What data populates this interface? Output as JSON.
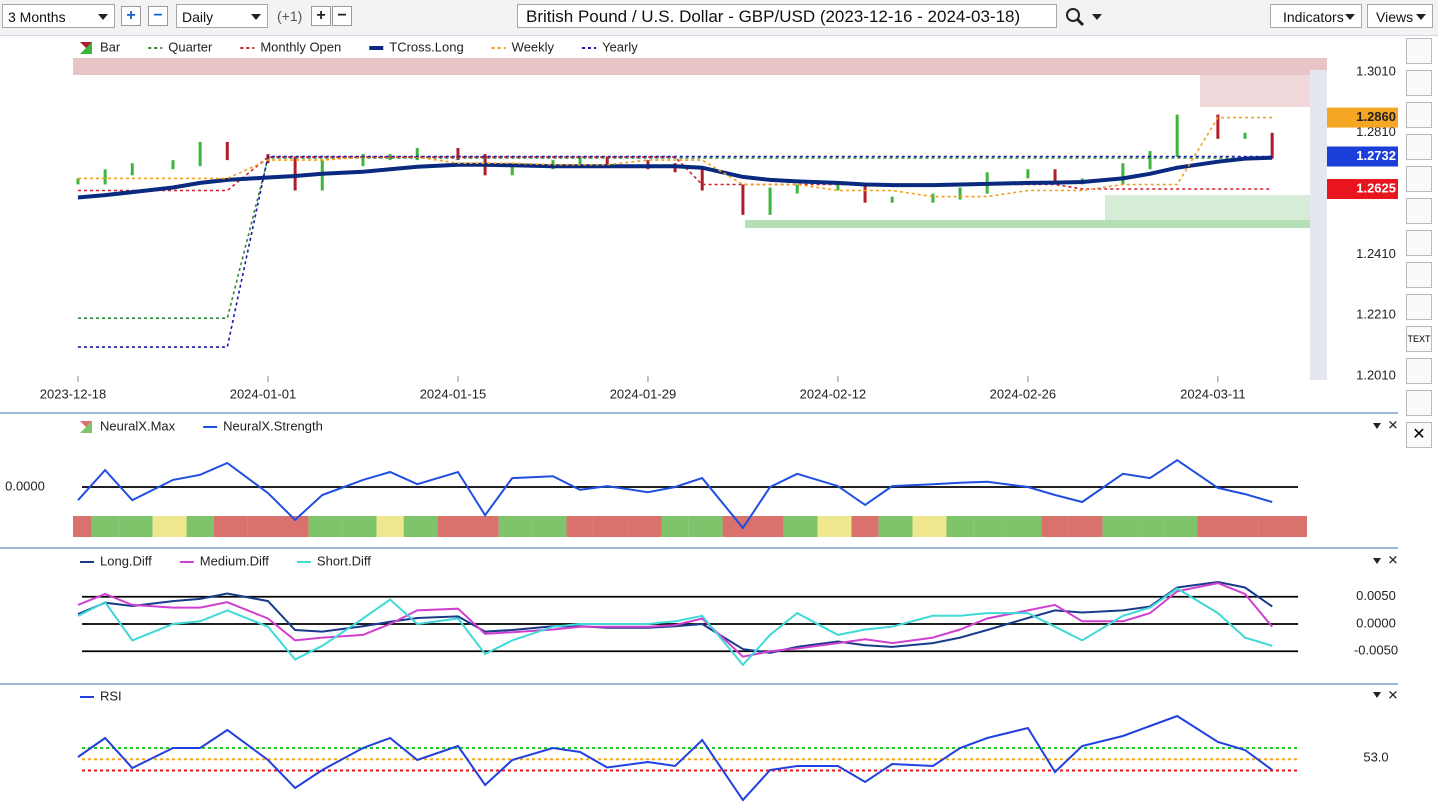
{
  "toolbar": {
    "period": "3 Months",
    "interval": "Daily",
    "offset": "(+1)",
    "title": "British Pound / U.S. Dollar - GBP/USD (2023-12-16 - 2024-03-18)",
    "indicators": "Indicators",
    "views": "Views",
    "text_tool": "TEXT"
  },
  "chart_data": [
    {
      "type": "line",
      "ylim": [
        1.1931,
        1.3056
      ],
      "yticks": [
        {
          "value": 1.301,
          "label": "1.3010"
        },
        {
          "value": 1.281,
          "label": "1.2810"
        },
        {
          "value": 1.241,
          "label": "1.2410"
        },
        {
          "value": 1.221,
          "label": "1.2210"
        },
        {
          "value": 1.201,
          "label": "1.2010"
        }
      ],
      "xticks": [
        "2023-12-18",
        "2024-01-01",
        "2024-01-15",
        "2024-01-29",
        "2024-02-12",
        "2024-02-26",
        "2024-03-11"
      ],
      "level_labels": [
        {
          "value": 1.286,
          "label": "1.2860",
          "color": "#f5a623"
        },
        {
          "value": 1.2732,
          "label": "1.2732",
          "color": "#1a3fd8"
        },
        {
          "value": 1.2625,
          "label": "1.2625",
          "color": "#e8141e"
        }
      ],
      "x": [
        "2023-12-18",
        "2023-12-20",
        "2023-12-22",
        "2023-12-25",
        "2023-12-27",
        "2023-12-29",
        "2024-01-01",
        "2024-01-03",
        "2024-01-05",
        "2024-01-08",
        "2024-01-10",
        "2024-01-12",
        "2024-01-15",
        "2024-01-17",
        "2024-01-19",
        "2024-01-22",
        "2024-01-24",
        "2024-01-26",
        "2024-01-29",
        "2024-01-31",
        "2024-02-02",
        "2024-02-05",
        "2024-02-07",
        "2024-02-09",
        "2024-02-12",
        "2024-02-14",
        "2024-02-16",
        "2024-02-19",
        "2024-02-21",
        "2024-02-23",
        "2024-02-26",
        "2024-02-28",
        "2024-03-01",
        "2024-03-04",
        "2024-03-06",
        "2024-03-08",
        "2024-03-11",
        "2024-03-13",
        "2024-03-15"
      ],
      "series": [
        {
          "name": "Bar",
          "style": "bars",
          "color": "#3cb53c",
          "down_color": "#b01c2a",
          "values": [
            1.265,
            1.268,
            1.27,
            1.271,
            1.277,
            1.273,
            1.272,
            1.263,
            1.271,
            1.273,
            1.273,
            1.275,
            1.273,
            1.268,
            1.27,
            1.271,
            1.272,
            1.271,
            1.27,
            1.269,
            1.263,
            1.255,
            1.262,
            1.263,
            1.263,
            1.259,
            1.259,
            1.26,
            1.262,
            1.267,
            1.268,
            1.265,
            1.265,
            1.27,
            1.274,
            1.286,
            1.28,
            1.28,
            1.2735
          ]
        },
        {
          "name": "Quarter",
          "style": "dashed",
          "color": "#2e8b3a",
          "values": [
            1.22,
            1.22,
            1.22,
            1.22,
            1.22,
            1.22,
            1.2727,
            1.2727,
            1.2727,
            1.2727,
            1.2727,
            1.2727,
            1.2727,
            1.2727,
            1.2727,
            1.2727,
            1.2727,
            1.2727,
            1.2727,
            1.2727,
            1.2727,
            1.2727,
            1.2727,
            1.2727,
            1.2727,
            1.2727,
            1.2727,
            1.2727,
            1.2727,
            1.2727,
            1.2727,
            1.2727,
            1.2727,
            1.2727,
            1.2727,
            1.2727,
            1.2727,
            1.2727,
            1.2727
          ]
        },
        {
          "name": "Monthly Open",
          "style": "dashed",
          "color": "#d0202a",
          "values": [
            1.262,
            1.262,
            1.262,
            1.262,
            1.262,
            1.262,
            1.273,
            1.273,
            1.273,
            1.273,
            1.273,
            1.273,
            1.273,
            1.273,
            1.273,
            1.273,
            1.273,
            1.273,
            1.273,
            1.273,
            1.264,
            1.264,
            1.264,
            1.264,
            1.264,
            1.264,
            1.264,
            1.264,
            1.264,
            1.264,
            1.264,
            1.264,
            1.2625,
            1.2625,
            1.2625,
            1.2625,
            1.2625,
            1.2625,
            1.2625
          ]
        },
        {
          "name": "TCross.Long",
          "style": "thick",
          "color": "#0a2a80",
          "values": [
            1.2597,
            1.2605,
            1.2615,
            1.263,
            1.2645,
            1.2655,
            1.2663,
            1.2668,
            1.2675,
            1.2682,
            1.269,
            1.2698,
            1.2705,
            1.2705,
            1.2703,
            1.27,
            1.27,
            1.27,
            1.27,
            1.27,
            1.2695,
            1.2665,
            1.2655,
            1.265,
            1.2645,
            1.264,
            1.2638,
            1.2638,
            1.264,
            1.2642,
            1.2645,
            1.2646,
            1.2648,
            1.266,
            1.2675,
            1.2695,
            1.2715,
            1.2725,
            1.2728
          ]
        },
        {
          "name": "Weekly",
          "style": "dashed",
          "color": "#f0a020",
          "values": [
            1.266,
            1.266,
            1.266,
            1.266,
            1.266,
            1.266,
            1.272,
            1.272,
            1.272,
            1.273,
            1.273,
            1.273,
            1.271,
            1.271,
            1.271,
            1.2705,
            1.2705,
            1.2705,
            1.272,
            1.272,
            1.272,
            1.264,
            1.264,
            1.264,
            1.262,
            1.262,
            1.262,
            1.26,
            1.26,
            1.26,
            1.262,
            1.262,
            1.262,
            1.264,
            1.264,
            1.264,
            1.286,
            1.286,
            1.286
          ]
        },
        {
          "name": "Yearly",
          "style": "dashed",
          "color": "#1a1aa8",
          "values": [
            1.2105,
            1.2105,
            1.2105,
            1.2105,
            1.2105,
            1.2105,
            1.2732,
            1.2732,
            1.2732,
            1.2732,
            1.2732,
            1.2732,
            1.2732,
            1.2732,
            1.2732,
            1.2732,
            1.2732,
            1.2732,
            1.2732,
            1.2732,
            1.2732,
            1.2732,
            1.2732,
            1.2732,
            1.2732,
            1.2732,
            1.2732,
            1.2732,
            1.2732,
            1.2732,
            1.2732,
            1.2732,
            1.2732,
            1.2732,
            1.2732,
            1.2732,
            1.2732,
            1.2732,
            1.2732
          ]
        }
      ]
    },
    {
      "type": "line",
      "ylim": [
        -1,
        1
      ],
      "yaxis_side": "left",
      "grid": true,
      "yticks": [
        {
          "value": 0,
          "label": "0.0000"
        }
      ],
      "palette": {
        "red": "#d9716c",
        "green": "#7dc46b",
        "yellow": "#efe88e"
      },
      "series": [
        {
          "name": "NeuralX.Max",
          "style": "states",
          "states": [
            "red",
            "green",
            "green",
            "yellow",
            "green",
            "red",
            "red",
            "red",
            "green",
            "green",
            "yellow",
            "green",
            "red",
            "red",
            "green",
            "green",
            "red",
            "red",
            "red",
            "green",
            "green",
            "red",
            "red",
            "green",
            "yellow",
            "red",
            "green",
            "yellow",
            "green",
            "green",
            "green",
            "red",
            "red",
            "green",
            "green",
            "green",
            "red",
            "red",
            "red"
          ]
        },
        {
          "name": "NeuralX.Strength",
          "style": "line",
          "color": "#1f4fe0",
          "values": [
            -0.28,
            0.36,
            -0.28,
            0.15,
            0.26,
            0.51,
            -0.13,
            -0.7,
            -0.17,
            0.15,
            0.32,
            0.06,
            0.32,
            -0.6,
            0.19,
            0.23,
            -0.06,
            0.02,
            -0.11,
            0,
            0.19,
            -0.87,
            0,
            0.28,
            0.02,
            -0.38,
            0.02,
            0.06,
            0.09,
            0.11,
            0,
            -0.17,
            -0.32,
            0.28,
            0.19,
            0.57,
            -0.02,
            -0.15,
            -0.32
          ]
        }
      ]
    },
    {
      "type": "line",
      "ylim": [
        -0.0088,
        0.0099
      ],
      "grid": true,
      "yticks": [
        {
          "value": 0.005,
          "label": "0.0050"
        },
        {
          "value": 0,
          "label": "0.0000"
        },
        {
          "value": -0.005,
          "label": "-0.0050"
        }
      ],
      "series": [
        {
          "name": "Long.Diff",
          "style": "line",
          "color": "#1a3a8a",
          "values": [
            0.0018,
            0.0039,
            0.0033,
            0.0042,
            0.0046,
            0.0056,
            0.0042,
            -0.0011,
            -0.0014,
            -0.0004,
            0.0004,
            0.0011,
            0.0014,
            -0.0014,
            -0.0011,
            -0.0004,
            -0.0004,
            -0.0007,
            -0.0007,
            -0.0004,
            0,
            -0.0046,
            -0.0053,
            -0.0042,
            -0.0032,
            -0.0039,
            -0.0042,
            -0.0035,
            -0.0025,
            -0.0011,
            0.0011,
            0.0025,
            0.0021,
            0.0025,
            0.0032,
            0.0067,
            0.0077,
            0.0067,
            0.0032
          ]
        },
        {
          "name": "Medium.Diff",
          "style": "line",
          "color": "#d040d0",
          "values": [
            0.0035,
            0.0055,
            0.0035,
            0.003,
            0.003,
            0.004,
            0.001,
            -0.003,
            -0.0025,
            -0.002,
            0,
            0.0025,
            0.0028,
            -0.0018,
            -0.0015,
            -0.001,
            -0.0005,
            -0.0005,
            -0.0005,
            -0.0002,
            0.001,
            -0.006,
            -0.005,
            -0.0045,
            -0.0035,
            -0.0028,
            -0.0035,
            -0.0025,
            -0.001,
            0.001,
            0.0025,
            0.0035,
            0.0005,
            0.0005,
            0.002,
            0.006,
            0.0075,
            0.0055,
            -0.0005
          ]
        },
        {
          "name": "Short.Diff",
          "style": "line",
          "color": "#40d8d8",
          "values": [
            0.0015,
            0.004,
            -0.003,
            0,
            0.0005,
            0.0025,
            -0.0005,
            -0.0065,
            -0.004,
            0.001,
            0.0045,
            0,
            0.001,
            -0.0055,
            -0.003,
            -0.0005,
            0,
            0,
            0,
            0.0005,
            0.0015,
            -0.0075,
            -0.002,
            0.002,
            -0.002,
            -0.001,
            -0.0005,
            0.0015,
            0.0015,
            0.002,
            0.002,
            -0.0005,
            -0.003,
            0.0015,
            0.003,
            0.0065,
            0.002,
            -0.0025,
            -0.004
          ]
        }
      ]
    },
    {
      "type": "line",
      "ylim": [
        32.2,
        74.2
      ],
      "yticks": [
        {
          "value": 53,
          "label": "53.0"
        }
      ],
      "levels": [
        {
          "value": 57,
          "color": "#22cc22"
        },
        {
          "value": 52.5,
          "color": "#f5a623"
        },
        {
          "value": 48,
          "color": "#e8141e"
        }
      ],
      "series": [
        {
          "name": "RSI",
          "style": "line",
          "color": "#2040e0",
          "values": [
            53.4,
            61,
            49,
            57,
            57,
            64.2,
            52.2,
            41,
            48.2,
            57,
            61,
            52.2,
            57.8,
            42.2,
            52.2,
            57,
            55.4,
            49.2,
            51.4,
            49.8,
            60.2,
            36.2,
            48.2,
            49.8,
            49.8,
            43.4,
            50.6,
            49.8,
            57,
            61,
            65,
            47.4,
            57.8,
            61.8,
            65.8,
            69.8,
            59.4,
            56.2,
            48.2
          ]
        }
      ]
    }
  ]
}
